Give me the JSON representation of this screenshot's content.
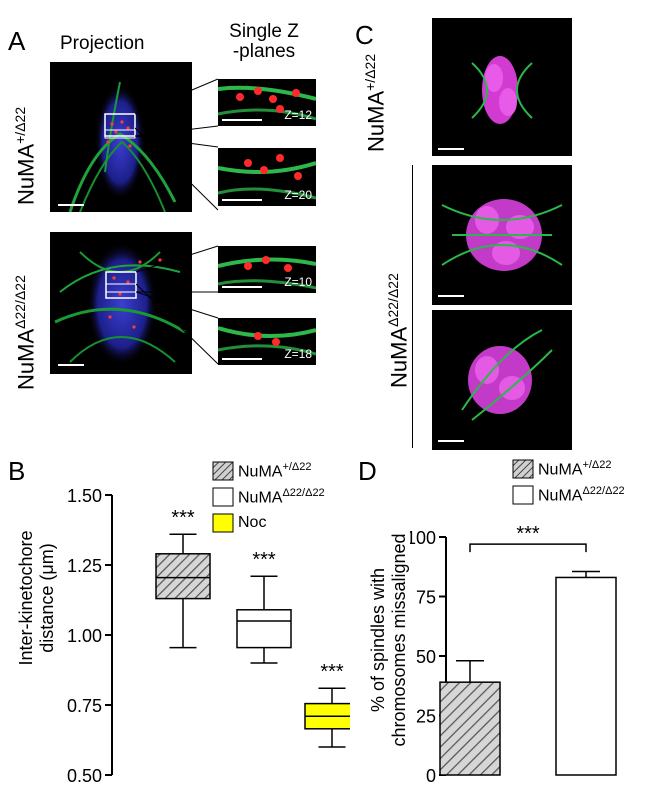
{
  "panel_a": {
    "label": "A",
    "header_projection": "Projection",
    "header_single_z": "Single Z",
    "header_single_z_2": "-planes",
    "genotype_top": {
      "base": "NuMA",
      "sup": "+/Δ22"
    },
    "genotype_bottom": {
      "base": "NuMA",
      "sup": "Δ22/Δ22"
    },
    "z_labels": [
      "Z=12",
      "Z=20",
      "Z=10",
      "Z=18"
    ]
  },
  "panel_c": {
    "label": "C",
    "genotype_top": {
      "base": "NuMA",
      "sup": "+/Δ22"
    },
    "genotype_bottom": {
      "base": "NuMA",
      "sup": "Δ22/Δ22"
    }
  },
  "panel_b": {
    "label": "B",
    "legend": [
      {
        "label_base": "NuMA",
        "label_sup": "+/Δ22",
        "fill": "hatched"
      },
      {
        "label_base": "NuMA",
        "label_sup": "Δ22/Δ22",
        "fill": "#ffffff"
      },
      {
        "label_base": "Noc",
        "label_sup": "",
        "fill": "#ffff00"
      }
    ],
    "ylabel_line1": "Inter-kinetochore",
    "ylabel_line2": "distance (μm)",
    "significance": "***"
  },
  "panel_d": {
    "label": "D",
    "legend": [
      {
        "label_base": "NuMA",
        "label_sup": "+/Δ22",
        "fill": "hatched"
      },
      {
        "label_base": "NuMA",
        "label_sup": "Δ22/Δ22",
        "fill": "#ffffff"
      }
    ],
    "ylabel_line1": "% of spindles with",
    "ylabel_line2": "chromosomes missaligned",
    "significance": "***"
  },
  "chart_data": [
    {
      "type": "box",
      "panel": "B",
      "ylabel": "Inter-kinetochore distance (μm)",
      "ylim": [
        0.5,
        1.5
      ],
      "yticks": [
        "0.50",
        "0.75",
        "1.00",
        "1.25",
        "1.50"
      ],
      "yticks_values": [
        0.5,
        0.75,
        1.0,
        1.25,
        1.5
      ],
      "series": [
        {
          "name": "NuMA+/Δ22",
          "fill": "hatched",
          "min": 0.955,
          "q1": 1.13,
          "median": 1.205,
          "q3": 1.29,
          "max": 1.36,
          "annotation": "***"
        },
        {
          "name": "NuMAΔ22/Δ22",
          "fill": "#ffffff",
          "min": 0.9,
          "q1": 0.955,
          "median": 1.05,
          "q3": 1.09,
          "max": 1.21,
          "annotation": "***"
        },
        {
          "name": "Noc",
          "fill": "#ffff00",
          "min": 0.6,
          "q1": 0.665,
          "median": 0.71,
          "q3": 0.755,
          "max": 0.81,
          "annotation": "***"
        }
      ]
    },
    {
      "type": "bar",
      "panel": "D",
      "ylabel": "% of spindles with chromosomes missaligned",
      "ylim": [
        0,
        100
      ],
      "yticks": [
        "0",
        "25",
        "50",
        "75",
        "100"
      ],
      "yticks_values": [
        0,
        25,
        50,
        75,
        100
      ],
      "series": [
        {
          "name": "NuMA+/Δ22",
          "fill": "hatched",
          "value": 39,
          "error": 9
        },
        {
          "name": "NuMAΔ22/Δ22",
          "fill": "#ffffff",
          "value": 83,
          "error": 2.5
        }
      ],
      "annotation": "***"
    }
  ]
}
